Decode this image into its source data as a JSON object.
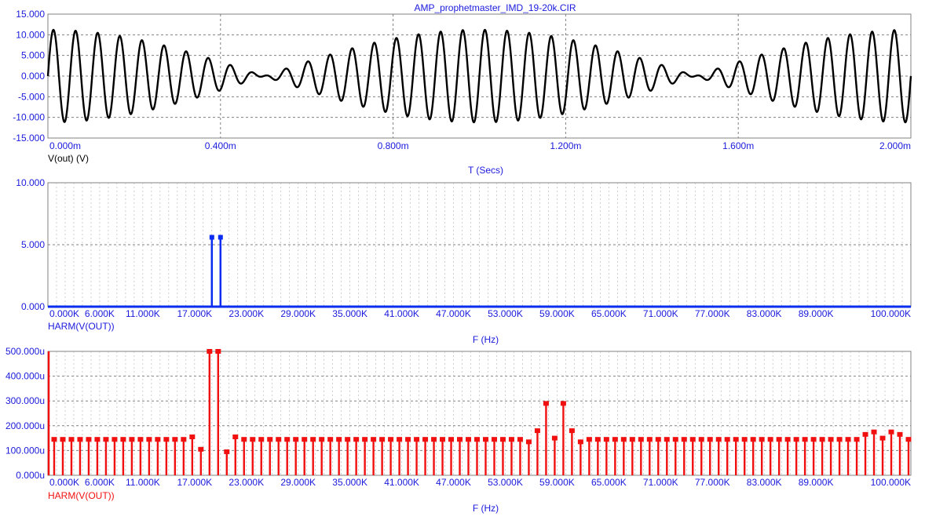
{
  "colors": {
    "axis_text": "#1a1adc",
    "title_text": "#1a1adc",
    "trace_time": "#000000",
    "trace_harm1": "#0a2bf0",
    "trace_harm2": "#f01010",
    "grid": "#808080",
    "frame": "#808080"
  },
  "chart_data": [
    {
      "type": "line",
      "title": "AMP_prophetmaster_IMD_19-20k.CIR",
      "xlabel": "T (Secs)",
      "ylabel": "",
      "trace_label": "V(out) (V)",
      "xlim": [
        0,
        2.0
      ],
      "ylim": [
        -15,
        15
      ],
      "x_unit": "ms",
      "xticks": [
        0.0,
        0.4,
        0.8,
        1.2,
        1.6,
        2.0
      ],
      "xtick_labels": [
        "0.000m",
        "0.400m",
        "0.800m",
        "1.200m",
        "1.600m",
        "2.000m"
      ],
      "yticks": [
        15,
        10,
        5,
        0,
        -5,
        -10,
        -15
      ],
      "ytick_labels": [
        "15.000",
        "10.000",
        "5.000",
        "0.000",
        "-5.000",
        "-10.000",
        "-15.000"
      ],
      "grid": true,
      "signal": {
        "description_of_form": "sum of two equal-amplitude sines",
        "components": [
          {
            "frequency_khz": 19,
            "amplitude_v": 5.6
          },
          {
            "frequency_khz": 20,
            "amplitude_v": 5.6
          }
        ]
      }
    },
    {
      "type": "bar",
      "title": "",
      "xlabel": "F (Hz)",
      "ylabel": "",
      "trace_label": "HARM(V(OUT))",
      "xlim": [
        0,
        100000
      ],
      "ylim": [
        0,
        10
      ],
      "xticks": [
        0,
        6000,
        11000,
        17000,
        23000,
        29000,
        35000,
        41000,
        47000,
        53000,
        59000,
        65000,
        71000,
        77000,
        83000,
        89000,
        100000
      ],
      "xtick_labels": [
        "0.000K",
        "6.000K",
        "11.000K",
        "17.000K",
        "23.000K",
        "29.000K",
        "35.000K",
        "41.000K",
        "47.000K",
        "53.000K",
        "59.000K",
        "65.000K",
        "71.000K",
        "77.000K",
        "83.000K",
        "89.000K",
        "100.000K"
      ],
      "yticks": [
        10,
        5,
        0
      ],
      "ytick_labels": [
        "10.000",
        "5.000",
        "0.000"
      ],
      "grid": true,
      "x": [
        19000,
        20000
      ],
      "values": [
        5.6,
        5.6
      ],
      "baseline": 0.0
    },
    {
      "type": "bar",
      "title": "",
      "xlabel": "F (Hz)",
      "ylabel": "",
      "trace_label": "HARM(V(OUT))",
      "xlim": [
        0,
        100000
      ],
      "ylim": [
        0,
        0.0005
      ],
      "xticks": [
        0,
        6000,
        11000,
        17000,
        23000,
        29000,
        35000,
        41000,
        47000,
        53000,
        59000,
        65000,
        71000,
        77000,
        83000,
        89000,
        100000
      ],
      "xtick_labels": [
        "0.000K",
        "6.000K",
        "11.000K",
        "17.000K",
        "23.000K",
        "29.000K",
        "35.000K",
        "41.000K",
        "47.000K",
        "53.000K",
        "59.000K",
        "65.000K",
        "71.000K",
        "77.000K",
        "83.000K",
        "89.000K",
        "100.000K"
      ],
      "yticks": [
        0.0005,
        0.0004,
        0.0003,
        0.0002,
        0.0001,
        0.0
      ],
      "ytick_labels": [
        "500.000u",
        "400.000u",
        "300.000u",
        "200.000u",
        "100.000u",
        "0.000u"
      ],
      "grid": true,
      "bin_step_hz": 1000,
      "floor_value": 0.000145,
      "overrides": [
        {
          "x": 17000,
          "value": 0.000155
        },
        {
          "x": 18000,
          "value": 0.000105
        },
        {
          "x": 19000,
          "value": 0.0005
        },
        {
          "x": 20000,
          "value": 0.0005
        },
        {
          "x": 21000,
          "value": 9.5e-05
        },
        {
          "x": 22000,
          "value": 0.000155
        },
        {
          "x": 56000,
          "value": 0.000135
        },
        {
          "x": 57000,
          "value": 0.00018
        },
        {
          "x": 58000,
          "value": 0.00029
        },
        {
          "x": 59000,
          "value": 0.00015
        },
        {
          "x": 60000,
          "value": 0.00029
        },
        {
          "x": 61000,
          "value": 0.00018
        },
        {
          "x": 62000,
          "value": 0.000135
        },
        {
          "x": 95000,
          "value": 0.000165
        },
        {
          "x": 96000,
          "value": 0.000175
        },
        {
          "x": 97000,
          "value": 0.00015
        },
        {
          "x": 98000,
          "value": 0.000175
        },
        {
          "x": 99000,
          "value": 0.000165
        }
      ]
    }
  ]
}
